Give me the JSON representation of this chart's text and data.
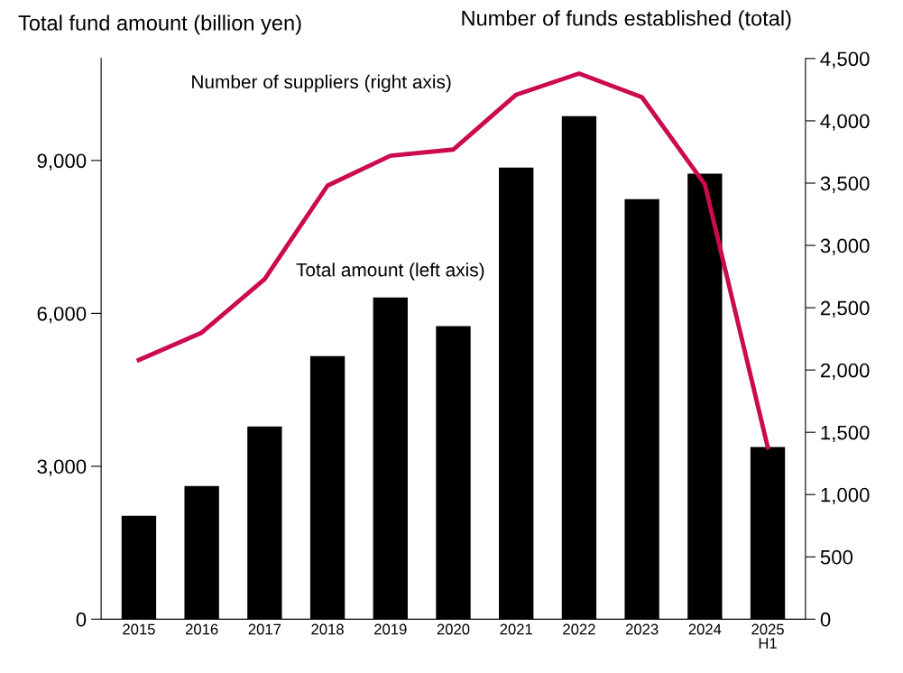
{
  "chart_data": {
    "type": "bar",
    "ylabel": "Total fund amount (billion yen)",
    "y2label": "Number of funds established (total)",
    "categories": [
      "2015",
      "2016",
      "2017",
      "2018",
      "2019",
      "2020",
      "2021",
      "2022",
      "2023",
      "2024",
      "2025\nH1"
    ],
    "series": [
      {
        "name": "Total amount (left axis)",
        "color": "#000000",
        "values": [
          2030,
          2610,
          3780,
          5160,
          6310,
          5750,
          8860,
          9870,
          8240,
          8740,
          3380
        ]
      },
      {
        "name": "Number of suppliers (right axis)",
        "type": "line",
        "axis": "y2",
        "color": "#cc0a50",
        "values": [
          2080,
          2300,
          2730,
          3480,
          3720,
          3770,
          4210,
          4380,
          4190,
          3490,
          1380
        ]
      }
    ],
    "ylim": [
      0,
      11000
    ],
    "yticks": [
      0,
      {
        "value": 3000,
        "label": "3,000"
      },
      {
        "value": 6000,
        "label": "6,000"
      },
      {
        "value": 9000,
        "label": "9,000"
      }
    ],
    "y2lim": [
      0,
      4500
    ],
    "y2ticks": [
      0,
      500,
      {
        "value": 1000,
        "label": "1,000"
      },
      {
        "value": 1500,
        "label": "1,500"
      },
      {
        "value": 2000,
        "label": "2,000"
      },
      {
        "value": 2500,
        "label": "2,500"
      },
      {
        "value": 3000,
        "label": "3,000"
      },
      {
        "value": 3500,
        "label": "3,500"
      },
      {
        "value": 4000,
        "label": "4,000"
      },
      {
        "value": 4500,
        "label": "4,500"
      }
    ],
    "grid": false,
    "legend": false,
    "marker": "none",
    "line_style": "solid"
  }
}
